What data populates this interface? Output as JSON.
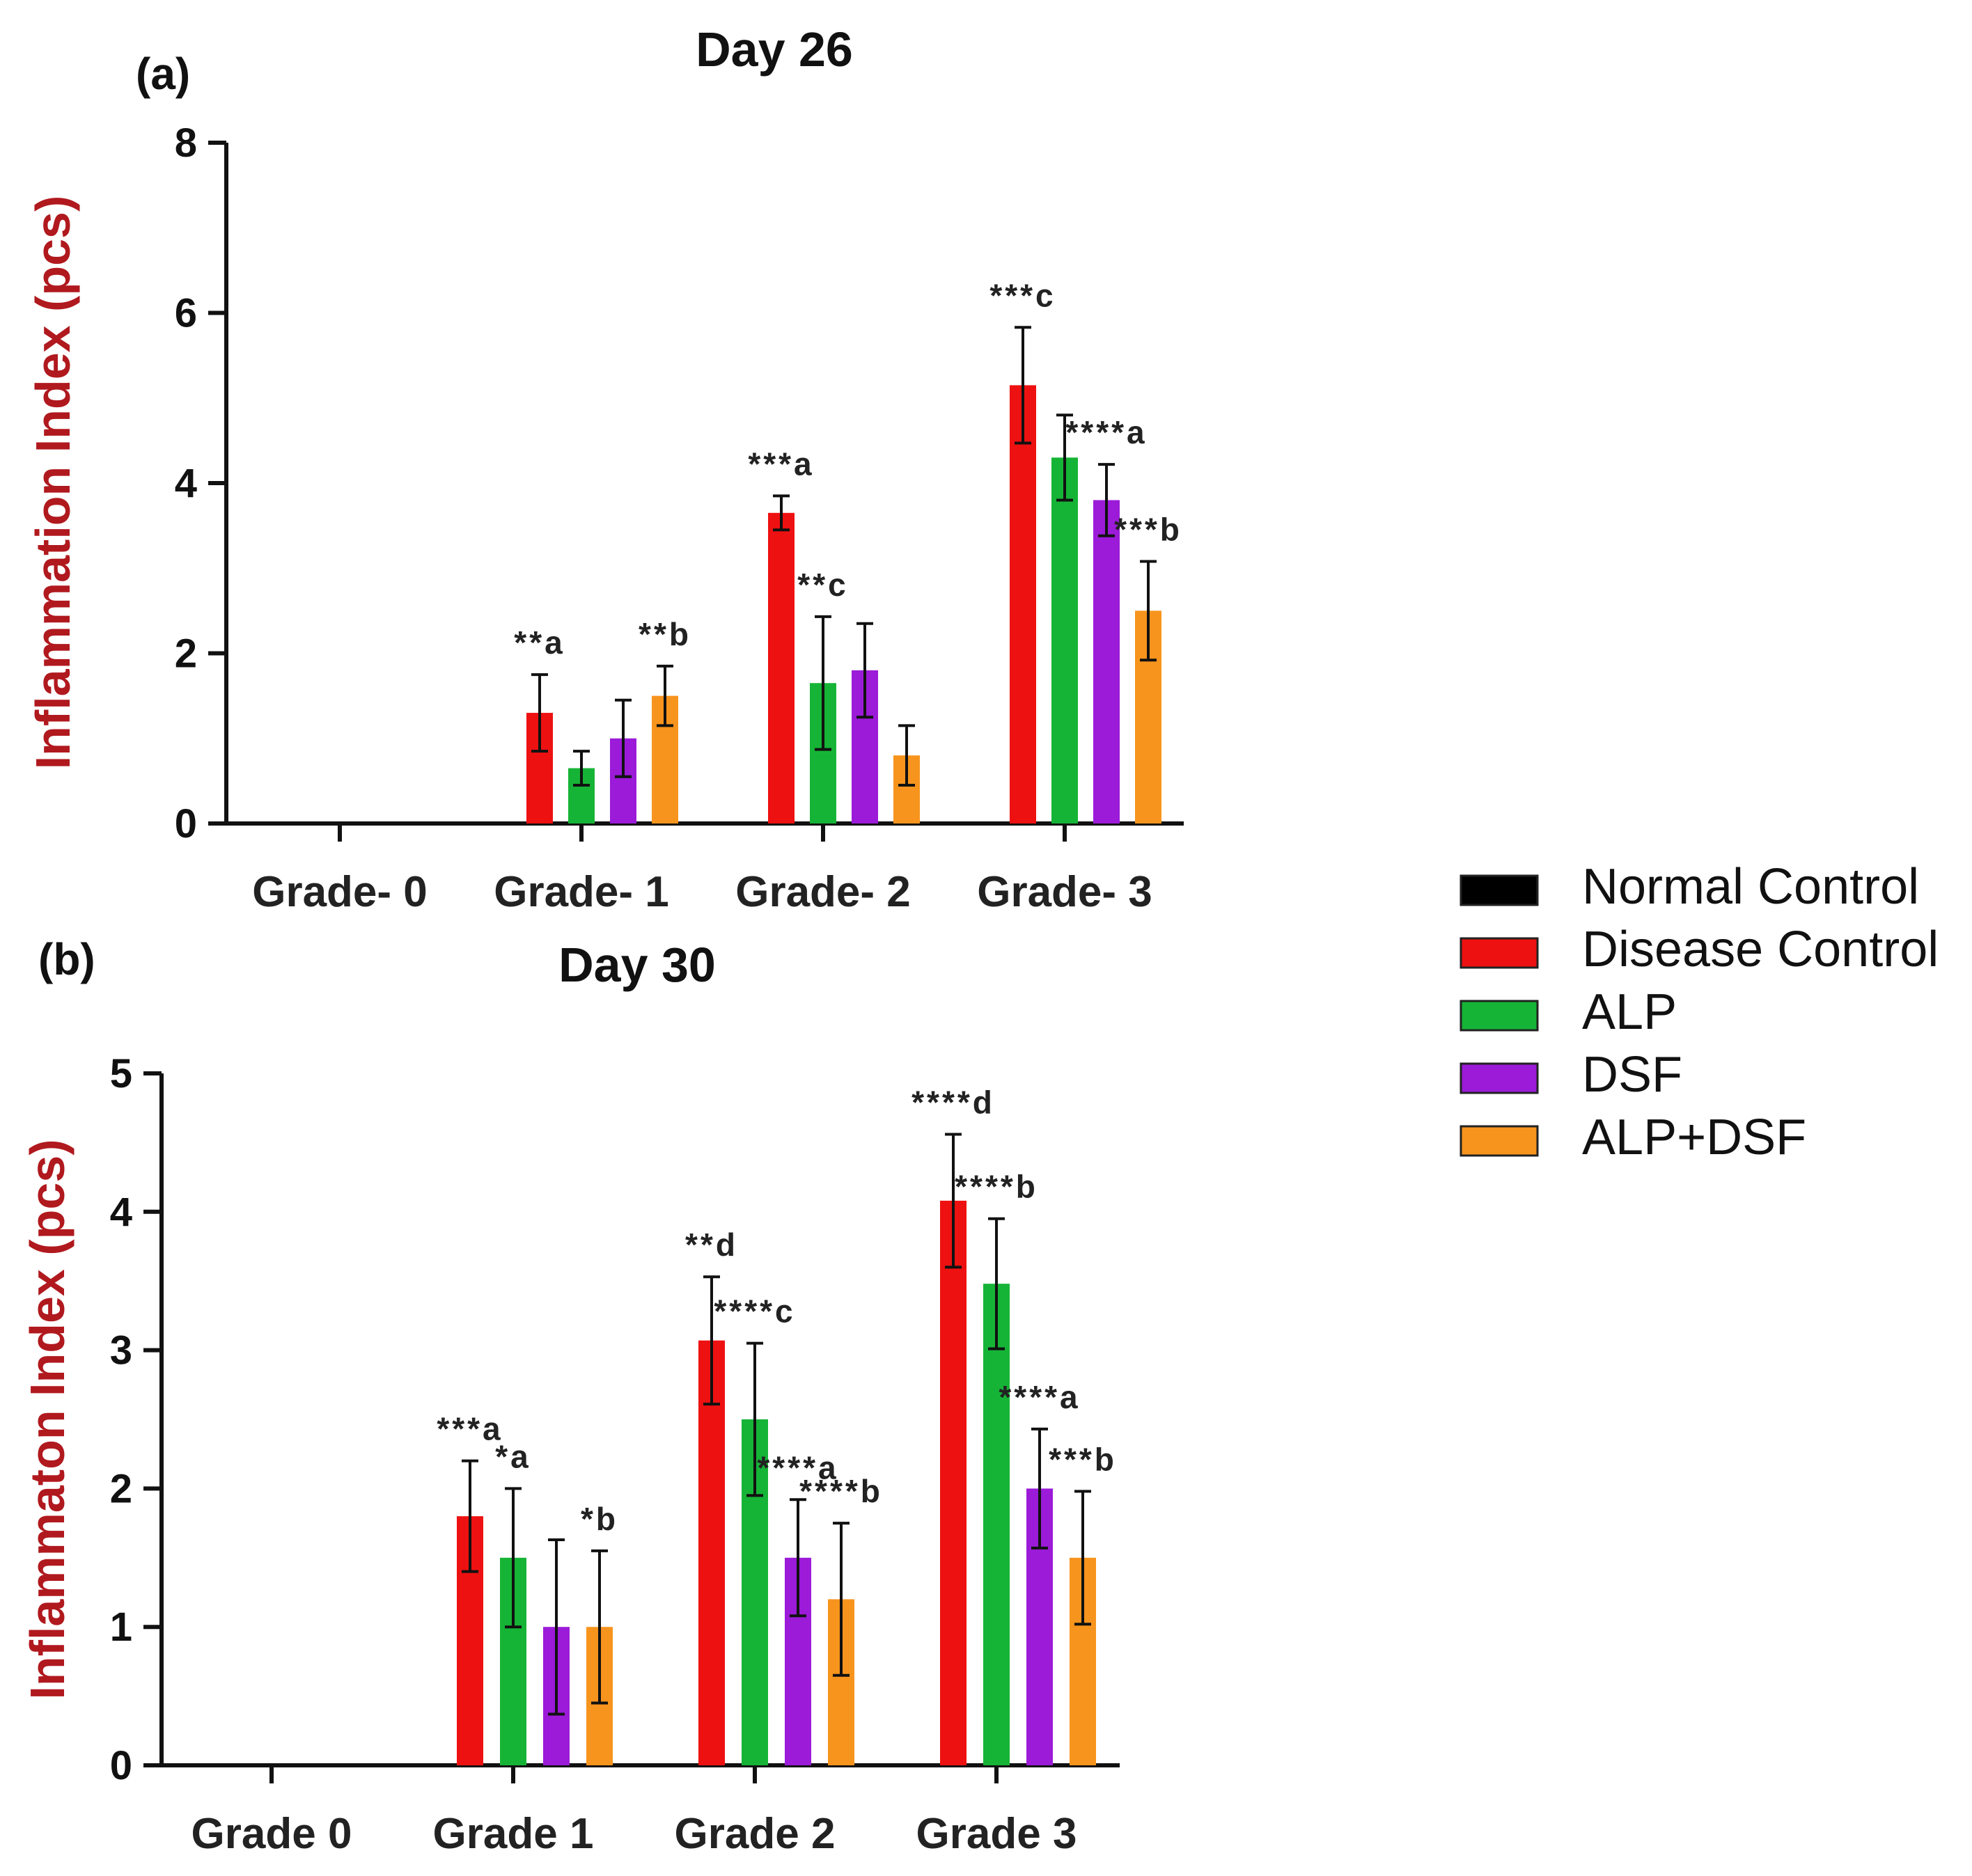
{
  "panels": [
    {
      "label": "(a)"
    },
    {
      "label": "(b)"
    }
  ],
  "legend": [
    {
      "name": "Normal Control",
      "color": "#000000"
    },
    {
      "name": "Disease Control",
      "color": "#ee1111"
    },
    {
      "name": "ALP",
      "color": "#16b436"
    },
    {
      "name": "DSF",
      "color": "#9b1bd8"
    },
    {
      "name": "ALP+DSF",
      "color": "#f7941d"
    }
  ],
  "chart_data": [
    {
      "type": "bar",
      "title": "Day 26",
      "ylabel": "Inflammation Index (pcs)",
      "xlabel": "",
      "ylim": [
        0,
        8
      ],
      "yticks": [
        0,
        2,
        4,
        6,
        8
      ],
      "categories": [
        "Grade- 0",
        "Grade- 1",
        "Grade- 2",
        "Grade- 3"
      ],
      "series": [
        {
          "name": "Normal Control",
          "values": [
            0,
            0,
            0,
            0
          ],
          "errors": [
            0,
            0,
            0,
            0
          ]
        },
        {
          "name": "Disease Control",
          "values": [
            0,
            1.3,
            3.65,
            5.15
          ],
          "errors": [
            0,
            0.45,
            0.2,
            0.68
          ]
        },
        {
          "name": "ALP",
          "values": [
            0,
            0.65,
            1.65,
            4.3
          ],
          "errors": [
            0,
            0.2,
            0.78,
            0.5
          ]
        },
        {
          "name": "DSF",
          "values": [
            0,
            1.0,
            1.8,
            3.8
          ],
          "errors": [
            0,
            0.45,
            0.55,
            0.42
          ]
        },
        {
          "name": "ALP+DSF",
          "values": [
            0,
            1.5,
            0.8,
            2.5
          ],
          "errors": [
            0,
            0.35,
            0.35,
            0.58
          ]
        }
      ],
      "annotations": [
        {
          "category": 1,
          "series": 1,
          "text": "**a"
        },
        {
          "category": 1,
          "series": 4,
          "text": "**b"
        },
        {
          "category": 2,
          "series": 1,
          "text": "***a"
        },
        {
          "category": 2,
          "series": 2,
          "text": "**c"
        },
        {
          "category": 3,
          "series": 1,
          "text": "***c"
        },
        {
          "category": 3,
          "series": 3,
          "text": "****a"
        },
        {
          "category": 3,
          "series": 4,
          "text": "***b"
        }
      ]
    },
    {
      "type": "bar",
      "title": "Day 30",
      "ylabel": "Inflammaton Index (pcs)",
      "xlabel": "",
      "ylim": [
        0,
        5
      ],
      "yticks": [
        0,
        1,
        2,
        3,
        4,
        5
      ],
      "categories": [
        "Grade 0",
        "Grade 1",
        "Grade 2",
        "Grade 3"
      ],
      "series": [
        {
          "name": "Normal Control",
          "values": [
            0,
            0,
            0,
            0
          ],
          "errors": [
            0,
            0,
            0,
            0
          ]
        },
        {
          "name": "Disease Control",
          "values": [
            0,
            1.8,
            3.07,
            4.08
          ],
          "errors": [
            0,
            0.4,
            0.46,
            0.48
          ]
        },
        {
          "name": "ALP",
          "values": [
            0,
            1.5,
            2.5,
            3.48
          ],
          "errors": [
            0,
            0.5,
            0.55,
            0.47
          ]
        },
        {
          "name": "DSF",
          "values": [
            0,
            1.0,
            1.5,
            2.0
          ],
          "errors": [
            0,
            0.63,
            0.42,
            0.43
          ]
        },
        {
          "name": "ALP+DSF",
          "values": [
            0,
            1.0,
            1.2,
            1.5
          ],
          "errors": [
            0,
            0.55,
            0.55,
            0.48
          ]
        }
      ],
      "annotations": [
        {
          "category": 1,
          "series": 1,
          "text": "***a"
        },
        {
          "category": 1,
          "series": 2,
          "text": "*a"
        },
        {
          "category": 1,
          "series": 4,
          "text": "*b"
        },
        {
          "category": 2,
          "series": 1,
          "text": "**d"
        },
        {
          "category": 2,
          "series": 2,
          "text": "****c"
        },
        {
          "category": 2,
          "series": 3,
          "text": "****a"
        },
        {
          "category": 2,
          "series": 4,
          "text": "****b"
        },
        {
          "category": 3,
          "series": 1,
          "text": "****d"
        },
        {
          "category": 3,
          "series": 2,
          "text": "****b"
        },
        {
          "category": 3,
          "series": 3,
          "text": "****a"
        },
        {
          "category": 3,
          "series": 4,
          "text": "***b"
        }
      ]
    }
  ]
}
